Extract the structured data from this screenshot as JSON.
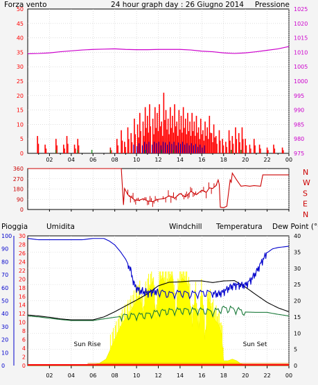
{
  "colors": {
    "background": "#f4f4f4",
    "plot_bg": "#ffffff",
    "grid": "#c8c8c8",
    "wind": "#ff0000",
    "gust": "#ff0000",
    "wind_avg": "#0000cc",
    "wind_green": "#008000",
    "pressure": "#cc00cc",
    "direction": "#cc0000",
    "humidity": "#0000cc",
    "temperature": "#000000",
    "dewpoint": "#1a7a3a",
    "solar": "#ffff00",
    "rain": "#ff0000",
    "windchill": "#e07000",
    "axis_left_bottom": "#0000cc",
    "axis_right_bottom": "#000000"
  },
  "header": {
    "left_label": "Forza vento",
    "title": "24 hour graph day : 26 Giugno 2014",
    "right_label": "Pressione"
  },
  "time_ticks": [
    "02",
    "04",
    "06",
    "08",
    "10",
    "12",
    "14",
    "16",
    "18",
    "20",
    "22",
    "00"
  ],
  "chart_data": [
    {
      "type": "line",
      "name": "wind_pressure",
      "left_axis": {
        "ticks": [
          "0",
          "5",
          "10",
          "15",
          "20",
          "25",
          "30",
          "35",
          "40",
          "45",
          "50"
        ],
        "ylim": [
          0,
          50
        ]
      },
      "right_axis": {
        "ticks": [
          "975",
          "980",
          "985",
          "990",
          "995",
          "1000",
          "1005",
          "1010",
          "1015",
          "1020",
          "1025"
        ],
        "ylim": [
          975,
          1025
        ]
      },
      "xlim": [
        0,
        24
      ],
      "series": [
        {
          "name": "Forza vento",
          "key": "wind"
        },
        {
          "name": "Pressione",
          "key": "pressure",
          "x": [
            0,
            1,
            2,
            3,
            4,
            5,
            6,
            7,
            8,
            9,
            10,
            11,
            12,
            13,
            14,
            15,
            16,
            17,
            18,
            19,
            20,
            21,
            22,
            23,
            24
          ],
          "values": [
            1009.5,
            1009.6,
            1009.8,
            1010.2,
            1010.5,
            1010.8,
            1011.0,
            1011.1,
            1011.2,
            1011.0,
            1010.9,
            1010.9,
            1011.0,
            1011.0,
            1011.0,
            1010.8,
            1010.4,
            1010.2,
            1009.8,
            1009.6,
            1009.8,
            1010.2,
            1010.7,
            1011.2,
            1012.0
          ]
        }
      ],
      "wind_peaks": [
        {
          "t": 0.9,
          "v": 6
        },
        {
          "t": 1.6,
          "v": 3
        },
        {
          "t": 2.6,
          "v": 5
        },
        {
          "t": 3.3,
          "v": 3
        },
        {
          "t": 3.6,
          "v": 6
        },
        {
          "t": 4.3,
          "v": 3
        },
        {
          "t": 4.6,
          "v": 5
        },
        {
          "t": 7.6,
          "v": 2
        },
        {
          "t": 8.2,
          "v": 5
        },
        {
          "t": 8.6,
          "v": 8
        },
        {
          "t": 8.9,
          "v": 4
        },
        {
          "t": 9.2,
          "v": 9
        },
        {
          "t": 9.5,
          "v": 7
        },
        {
          "t": 9.8,
          "v": 12
        },
        {
          "t": 10.1,
          "v": 10
        },
        {
          "t": 10.3,
          "v": 14
        },
        {
          "t": 10.6,
          "v": 11
        },
        {
          "t": 10.8,
          "v": 16
        },
        {
          "t": 11.0,
          "v": 13
        },
        {
          "t": 11.2,
          "v": 17
        },
        {
          "t": 11.5,
          "v": 12
        },
        {
          "t": 11.7,
          "v": 16
        },
        {
          "t": 11.9,
          "v": 14
        },
        {
          "t": 12.1,
          "v": 17
        },
        {
          "t": 12.3,
          "v": 11
        },
        {
          "t": 12.5,
          "v": 21
        },
        {
          "t": 12.7,
          "v": 15
        },
        {
          "t": 12.9,
          "v": 12
        },
        {
          "t": 13.1,
          "v": 16
        },
        {
          "t": 13.3,
          "v": 13
        },
        {
          "t": 13.5,
          "v": 17
        },
        {
          "t": 13.7,
          "v": 11
        },
        {
          "t": 13.9,
          "v": 15
        },
        {
          "t": 14.1,
          "v": 13
        },
        {
          "t": 14.3,
          "v": 16
        },
        {
          "t": 14.5,
          "v": 12
        },
        {
          "t": 14.7,
          "v": 14
        },
        {
          "t": 14.9,
          "v": 11
        },
        {
          "t": 15.1,
          "v": 14
        },
        {
          "t": 15.3,
          "v": 11
        },
        {
          "t": 15.5,
          "v": 13
        },
        {
          "t": 15.7,
          "v": 9
        },
        {
          "t": 15.9,
          "v": 12
        },
        {
          "t": 16.1,
          "v": 8
        },
        {
          "t": 16.3,
          "v": 11
        },
        {
          "t": 16.5,
          "v": 9
        },
        {
          "t": 16.7,
          "v": 13
        },
        {
          "t": 16.9,
          "v": 7
        },
        {
          "t": 17.1,
          "v": 10
        },
        {
          "t": 17.3,
          "v": 6
        },
        {
          "t": 17.6,
          "v": 8
        },
        {
          "t": 17.9,
          "v": 5
        },
        {
          "t": 18.2,
          "v": 4
        },
        {
          "t": 18.5,
          "v": 8
        },
        {
          "t": 18.8,
          "v": 6
        },
        {
          "t": 19.1,
          "v": 9
        },
        {
          "t": 19.4,
          "v": 7
        },
        {
          "t": 19.7,
          "v": 9
        },
        {
          "t": 20.0,
          "v": 5
        },
        {
          "t": 20.4,
          "v": 3
        },
        {
          "t": 20.8,
          "v": 5
        },
        {
          "t": 21.3,
          "v": 3
        },
        {
          "t": 22.0,
          "v": 2
        },
        {
          "t": 22.6,
          "v": 3
        },
        {
          "t": 23.4,
          "v": 2
        }
      ]
    },
    {
      "type": "line",
      "name": "wind_direction",
      "left_axis": {
        "ticks": [
          "360",
          "270",
          "180",
          "90",
          "0"
        ],
        "ylim": [
          0,
          360
        ]
      },
      "right_axis": {
        "ticks": [
          "N",
          "W",
          "S",
          "E",
          "N"
        ]
      },
      "xlim": [
        0,
        24
      ],
      "series": [
        {
          "name": "direction",
          "x": [
            0.0,
            8.6,
            8.8,
            8.9,
            9.2,
            9.5,
            9.8,
            10.2,
            10.6,
            11.0,
            11.5,
            12.0,
            12.5,
            13.0,
            13.5,
            14.0,
            14.5,
            15.0,
            15.5,
            16.0,
            16.4,
            16.7,
            17.0,
            17.3,
            17.5,
            17.6,
            17.7,
            18.0,
            18.3,
            18.6,
            18.7,
            18.8,
            19.2,
            19.6,
            20.0,
            20.4,
            20.8,
            21.4,
            21.6,
            22.5,
            24.0
          ],
          "values": [
            360,
            360,
            40,
            185,
            130,
            110,
            85,
            80,
            95,
            75,
            70,
            90,
            95,
            120,
            100,
            140,
            110,
            160,
            130,
            170,
            150,
            190,
            185,
            210,
            260,
            220,
            20,
            15,
            30,
            260,
            240,
            320,
            260,
            205,
            210,
            205,
            210,
            205,
            305,
            305,
            305
          ]
        }
      ]
    },
    {
      "type": "line",
      "name": "temperature_humidity_solar",
      "header": {
        "rain_label": "Pioggia",
        "humidity_label": "Umidita",
        "windchill_label": "Windchill",
        "temperature_label": "Temperatura",
        "dewpoint_label": "Dew Point (°C"
      },
      "annotations": {
        "sunrise": "Sun Rise",
        "sunset": "Sun Set"
      },
      "humidity_axis": {
        "ticks": [
          "0",
          "10",
          "20",
          "30",
          "40",
          "50",
          "60",
          "70",
          "80",
          "90",
          "100"
        ],
        "ylim": [
          0,
          100
        ]
      },
      "rain_axis": {
        "ticks": [
          "0",
          "2",
          "4",
          "6",
          "8",
          "10",
          "12",
          "14",
          "16",
          "18",
          "20",
          "22",
          "24",
          "26",
          "28",
          "30"
        ],
        "ylim": [
          0,
          30
        ]
      },
      "temp_axis": {
        "ticks": [
          "0",
          "5",
          "10",
          "15",
          "20",
          "25",
          "30",
          "35",
          "40"
        ],
        "ylim": [
          0,
          40
        ]
      },
      "xlim": [
        0,
        24
      ],
      "series": [
        {
          "name": "Umidita",
          "x": [
            0,
            1,
            2,
            3,
            4,
            5,
            6,
            7,
            7.5,
            8,
            8.5,
            9,
            9.4,
            9.8,
            10.2,
            10.6,
            11,
            11.5,
            12,
            13,
            14,
            15,
            16,
            17,
            17.5,
            18,
            18.5,
            19,
            19.5,
            20,
            20.5,
            21,
            21.5,
            22,
            22.5,
            23,
            24
          ],
          "values": [
            98,
            97,
            97,
            97,
            97,
            97,
            98,
            98,
            96,
            93,
            88,
            82,
            75,
            62,
            58,
            57,
            56,
            57,
            57,
            55,
            56,
            55,
            56,
            56,
            55,
            57,
            60,
            62,
            62,
            62,
            66,
            72,
            80,
            87,
            90,
            91,
            92
          ]
        },
        {
          "name": "Temperatura",
          "x": [
            0,
            1,
            2,
            3,
            4,
            5,
            6,
            7,
            8,
            9,
            10,
            11,
            12,
            13,
            14,
            15,
            16,
            17,
            18,
            19,
            20,
            21,
            22,
            23,
            24
          ],
          "values": [
            15.6,
            15.3,
            14.9,
            14.4,
            14.1,
            14.1,
            14.1,
            15.0,
            16.6,
            18.4,
            20.2,
            22.1,
            24.6,
            25.7,
            25.8,
            26.1,
            26.1,
            25.6,
            26.1,
            26.2,
            24.2,
            21.8,
            19.5,
            17.8,
            16.6
          ]
        },
        {
          "name": "Dew Point (°C",
          "x": [
            0,
            1,
            2,
            3,
            4,
            5,
            6,
            7,
            8,
            9,
            10,
            11,
            12,
            13,
            14,
            15,
            16,
            17,
            18,
            19,
            20,
            21,
            22,
            23,
            24
          ],
          "values": [
            15.3,
            15.0,
            14.6,
            14.2,
            13.9,
            13.9,
            13.9,
            14.4,
            14.9,
            15.3,
            15.4,
            15.6,
            16.5,
            16.8,
            17.0,
            17.0,
            17.0,
            16.5,
            17.6,
            17.3,
            16.5,
            16.4,
            16.4,
            15.8,
            15.3
          ]
        },
        {
          "name": "solar",
          "x": [
            0,
            5.5,
            6.5,
            7.2,
            7.6,
            8.0,
            8.4,
            8.8,
            9.2,
            9.6,
            10.0,
            10.3,
            10.6,
            10.9,
            11.2,
            11.5,
            11.8,
            12.1,
            12.4,
            12.7,
            13.0,
            13.3,
            13.6,
            13.9,
            14.2,
            14.5,
            14.8,
            15.1,
            15.4,
            15.7,
            16.0,
            16.3,
            16.6,
            16.9,
            17.2,
            17.5,
            17.8,
            18.0,
            18.4,
            18.8,
            19.2,
            19.6,
            20.2,
            24
          ],
          "values": [
            0,
            0,
            0.5,
            2,
            5,
            8,
            11,
            13.5,
            15.5,
            17.5,
            20,
            21.5,
            16,
            22.5,
            24,
            26,
            14,
            26,
            27,
            25,
            26.5,
            28,
            15,
            25,
            27,
            26,
            24,
            12,
            22,
            11,
            23,
            8,
            21,
            17,
            14,
            13,
            10,
            1.5,
            1.5,
            2,
            1.5,
            0.5,
            0,
            0
          ]
        }
      ]
    }
  ]
}
